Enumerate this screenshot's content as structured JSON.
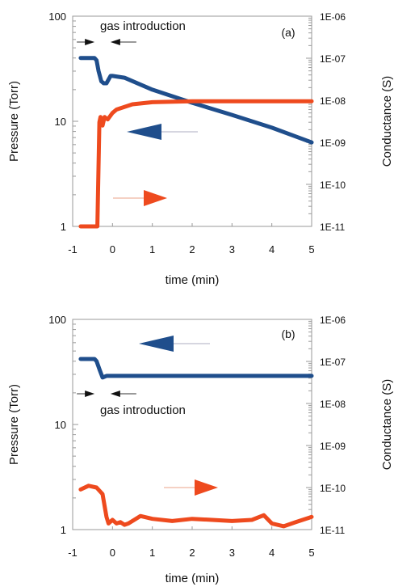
{
  "chart_data": [
    {
      "type": "line",
      "panel_label": "(a)",
      "xlabel": "time (min)",
      "ylabel_left": "Pressure (Torr)",
      "ylabel_right": "Conductance (S)",
      "xlim": [
        -1,
        5
      ],
      "ylim_left": [
        1,
        100
      ],
      "ylim_right": [
        1e-11,
        1e-06
      ],
      "yscale": "log",
      "x_ticks": [
        "-1",
        "0",
        "1",
        "2",
        "3",
        "4",
        "5"
      ],
      "y_ticks_left": [
        "1",
        "10",
        "100"
      ],
      "y_ticks_right": [
        "1E-11",
        "1E-10",
        "1E-09",
        "1E-08",
        "1E-07",
        "1E-06"
      ],
      "annotation": "gas introduction",
      "grid": false,
      "series": [
        {
          "axis": "left",
          "color": "#1f4e8c",
          "x": [
            -0.8,
            -0.45,
            -0.4,
            -0.35,
            -0.28,
            -0.22,
            -0.15,
            -0.05,
            0.0,
            0.3,
            1.0,
            2.0,
            3.0,
            4.0,
            5.0
          ],
          "y": [
            40,
            40,
            38,
            30,
            24,
            23,
            23,
            27,
            27,
            26,
            20,
            15,
            11.5,
            8.7,
            6.3
          ]
        },
        {
          "axis": "right",
          "color": "#ee4a1e",
          "x": [
            -0.8,
            -0.38,
            -0.36,
            -0.33,
            -0.3,
            -0.25,
            -0.2,
            -0.12,
            0.0,
            0.1,
            0.5,
            1.0,
            2.0,
            3.0,
            4.0,
            5.0
          ],
          "y": [
            1e-11,
            1e-11,
            1e-10,
            3e-09,
            4e-09,
            2.5e-09,
            4e-09,
            3.5e-09,
            5e-09,
            6e-09,
            8e-09,
            9e-09,
            9.5e-09,
            9.5e-09,
            9.5e-09,
            9.5e-09
          ]
        }
      ]
    },
    {
      "type": "line",
      "panel_label": "(b)",
      "xlabel": "time (min)",
      "ylabel_left": "Pressure (Torr)",
      "ylabel_right": "Conductance (S)",
      "xlim": [
        -1,
        5
      ],
      "ylim_left": [
        1,
        100
      ],
      "ylim_right": [
        1e-11,
        1e-06
      ],
      "yscale": "log",
      "x_ticks": [
        "-1",
        "0",
        "1",
        "2",
        "3",
        "4",
        "5"
      ],
      "y_ticks_left": [
        "1",
        "10",
        "100"
      ],
      "y_ticks_right": [
        "1E-11",
        "1E-10",
        "1E-09",
        "1E-08",
        "1E-07",
        "1E-06"
      ],
      "annotation": "gas introduction",
      "grid": false,
      "series": [
        {
          "axis": "left",
          "color": "#1f4e8c",
          "x": [
            -0.8,
            -0.45,
            -0.4,
            -0.32,
            -0.25,
            -0.15,
            0.0,
            1.0,
            2.0,
            3.0,
            4.0,
            5.0
          ],
          "y": [
            42,
            42,
            40,
            33,
            28,
            29,
            29,
            29,
            29,
            29,
            29,
            29
          ]
        },
        {
          "axis": "right",
          "color": "#ee4a1e",
          "x": [
            -0.8,
            -0.6,
            -0.4,
            -0.25,
            -0.15,
            -0.1,
            0.0,
            0.1,
            0.2,
            0.3,
            0.4,
            0.5,
            0.7,
            1.0,
            1.5,
            2.0,
            2.5,
            3.0,
            3.5,
            3.8,
            4.0,
            4.3,
            4.6,
            5.0
          ],
          "y": [
            9e-11,
            1.1e-10,
            1e-10,
            7e-11,
            2e-11,
            1.4e-11,
            1.7e-11,
            1.4e-11,
            1.5e-11,
            1.3e-11,
            1.4e-11,
            1.6e-11,
            2.1e-11,
            1.8e-11,
            1.6e-11,
            1.8e-11,
            1.7e-11,
            1.6e-11,
            1.7e-11,
            2.2e-11,
            1.4e-11,
            1.2e-11,
            1.5e-11,
            2e-11
          ]
        }
      ]
    }
  ]
}
